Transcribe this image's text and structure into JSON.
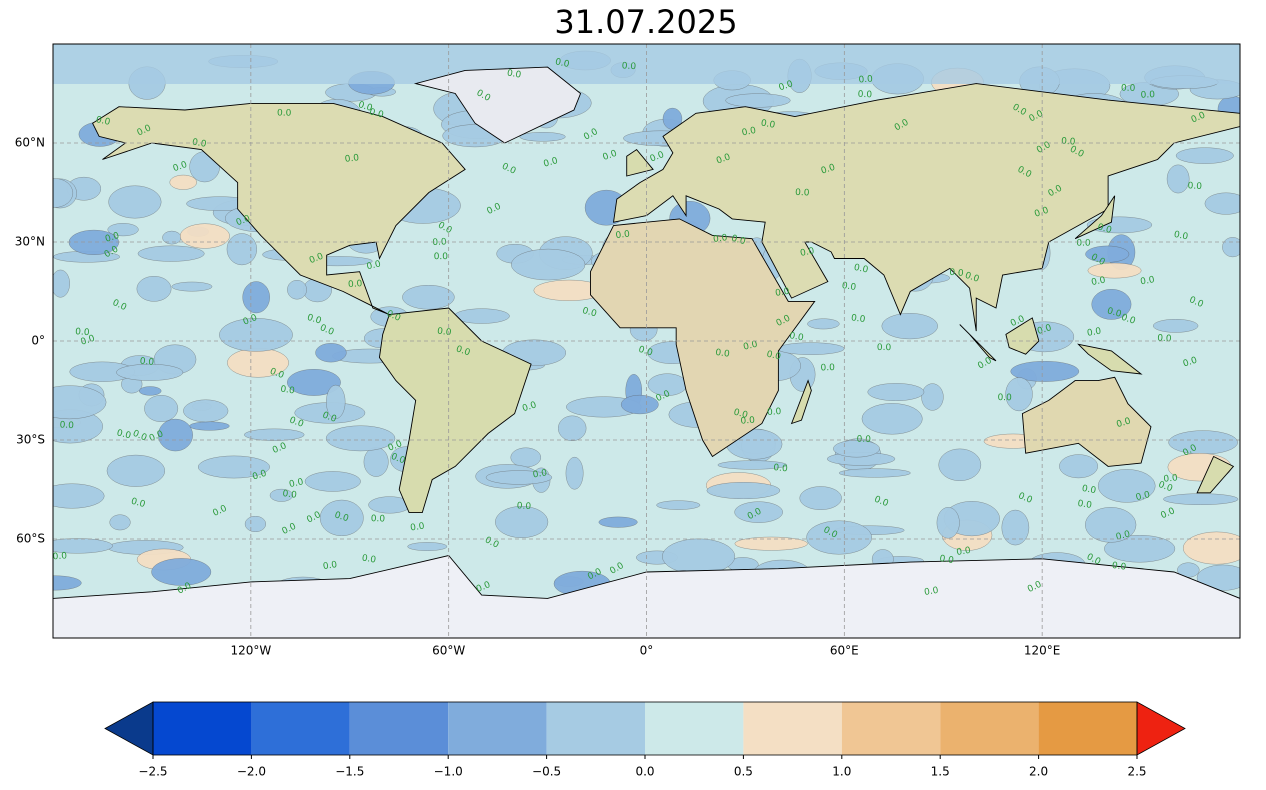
{
  "chart_data": {
    "type": "contour_map",
    "title": "31.07.2025",
    "xlim": [
      -180,
      180
    ],
    "ylim": [
      -90,
      90
    ],
    "xticks": [
      {
        "value": -120,
        "label": "120°W"
      },
      {
        "value": -60,
        "label": "60°W"
      },
      {
        "value": 0,
        "label": "0°"
      },
      {
        "value": 60,
        "label": "60°E"
      },
      {
        "value": 120,
        "label": "120°E"
      }
    ],
    "yticks": [
      {
        "value": -60,
        "label": "60°S"
      },
      {
        "value": -30,
        "label": "30°S"
      },
      {
        "value": 0,
        "label": "0°"
      },
      {
        "value": 30,
        "label": "30°N"
      },
      {
        "value": 60,
        "label": "60°N"
      }
    ],
    "grid": true,
    "contour_label": "0.0",
    "colorbar": {
      "levels": [
        {
          "value": -2.5,
          "label": "−2.5"
        },
        {
          "value": -2.0,
          "label": "−2.0"
        },
        {
          "value": -1.5,
          "label": "−1.5"
        },
        {
          "value": -1.0,
          "label": "−1.0"
        },
        {
          "value": -0.5,
          "label": "−0.5"
        },
        {
          "value": 0.0,
          "label": "0.0"
        },
        0.5,
        {
          "value": 1.0,
          "label": "1.0"
        },
        1.5,
        {
          "value": 2.0,
          "label": "2.0"
        },
        2.5
      ],
      "colors": [
        "#0548d0",
        "#2e6fd8",
        "#5b8ed8",
        "#80acdc",
        "#a6cbe3",
        "#cde9e9",
        "#f4dfc4",
        "#f0c694",
        "#ebb26e",
        "#e59a43"
      ],
      "under_color": "#0a3a8c",
      "over_color": "#ee2211"
    }
  }
}
